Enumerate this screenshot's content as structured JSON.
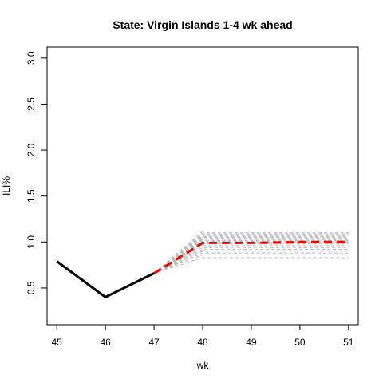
{
  "chart_data": {
    "type": "line",
    "title": "State: Virgin Islands 1-4 wk ahead",
    "xlabel": "wk",
    "ylabel": "ILI%",
    "xlim": [
      44.8,
      51.2
    ],
    "ylim": [
      0.1,
      3.12
    ],
    "x_ticks": [
      45,
      46,
      47,
      48,
      49,
      50,
      51
    ],
    "y_ticks": [
      0.5,
      1.0,
      1.5,
      2.0,
      2.5,
      3.0
    ],
    "y_tick_labels": [
      "0.5",
      "1.0",
      "1.5",
      "2.0",
      "2.5",
      "3.0"
    ],
    "grid": false,
    "legend": "none",
    "series": [
      {
        "style": "observed",
        "color": "#000000",
        "x": [
          45,
          46,
          47
        ],
        "y": [
          0.79,
          0.4,
          0.66
        ]
      },
      {
        "style": "forecast-mean",
        "color": "#ff0000",
        "dash": "dashed",
        "x": [
          47,
          48,
          49,
          50,
          51
        ],
        "y": [
          0.66,
          0.99,
          0.99,
          1.0,
          1.0
        ]
      }
    ],
    "trajectories": {
      "color": "#bebebe",
      "dash": "dashed",
      "x": [
        47,
        48,
        49,
        50,
        51
      ],
      "start_y": 0.66,
      "end_y_values": [
        0.83,
        0.86,
        0.88,
        0.9,
        0.92,
        0.94,
        0.96,
        0.98,
        0.99,
        1.0,
        1.01,
        1.02,
        1.03,
        1.04,
        1.05,
        1.06,
        1.07,
        1.08,
        1.09,
        1.1,
        1.12
      ]
    }
  }
}
